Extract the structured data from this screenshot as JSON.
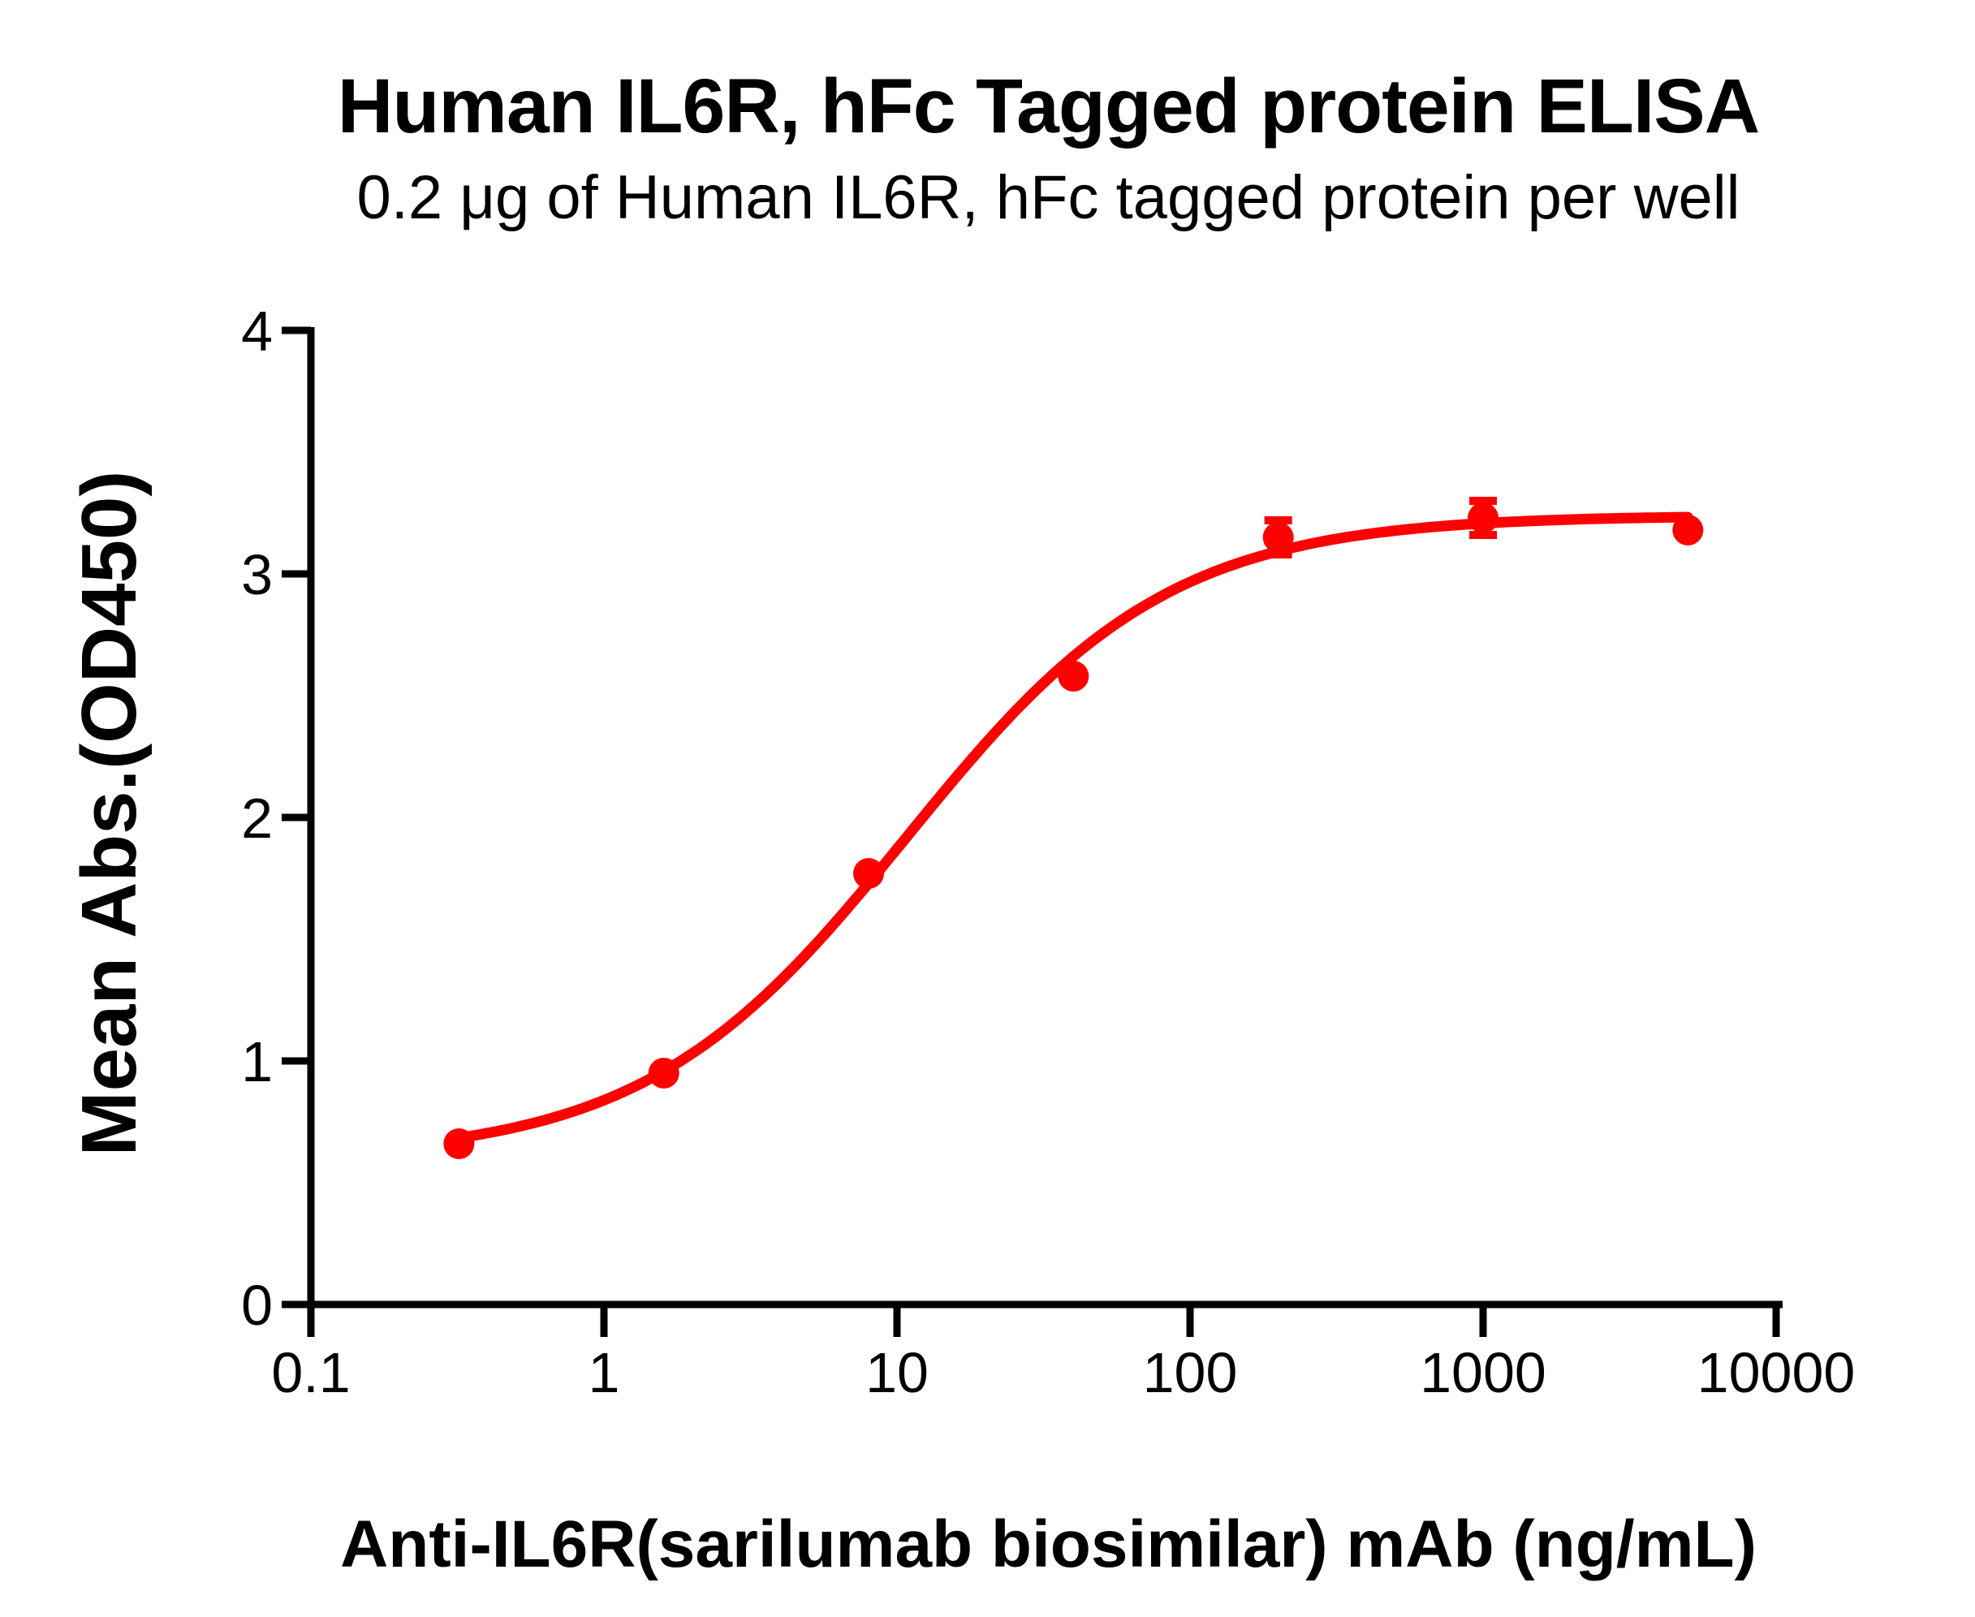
{
  "chart_data": {
    "type": "scatter",
    "title": "Human IL6R, hFc Tagged protein ELISA",
    "subtitle": "0.2 μg of Human IL6R, hFc tagged protein per well",
    "xlabel": "Anti-IL6R(sarilumab biosimilar) mAb (ng/mL)",
    "ylabel": "Mean Abs.(OD450)",
    "x_scale": "log10",
    "xlim": [
      0.1,
      10000
    ],
    "ylim": [
      0,
      4
    ],
    "x_ticks": [
      0.1,
      1,
      10,
      100,
      1000,
      10000
    ],
    "x_tick_labels": [
      "0.1",
      "1",
      "10",
      "100",
      "1000",
      "10000"
    ],
    "y_ticks": [
      0,
      1,
      2,
      3,
      4
    ],
    "y_tick_labels": [
      "0",
      "1",
      "2",
      "3",
      "4"
    ],
    "grid": false,
    "legend": "none",
    "axis_color": "#000000",
    "series": [
      {
        "name": "Anti-IL6R(sarilumab biosimilar) mAb",
        "color": "#FF0000",
        "marker": "circle",
        "points": [
          {
            "x": 0.32,
            "y": 0.66
          },
          {
            "x": 1.6,
            "y": 0.95
          },
          {
            "x": 8,
            "y": 1.77
          },
          {
            "x": 40,
            "y": 2.58
          },
          {
            "x": 200,
            "y": 3.15,
            "y_err": 0.07
          },
          {
            "x": 1000,
            "y": 3.23,
            "y_err": 0.07
          },
          {
            "x": 5000,
            "y": 3.18
          }
        ],
        "fit_curve": {
          "model": "4PL",
          "bottom": 0.6,
          "top": 3.24,
          "ec50": 10.8,
          "hill": 0.97,
          "x_start": 0.32,
          "x_end": 5000
        }
      }
    ]
  }
}
